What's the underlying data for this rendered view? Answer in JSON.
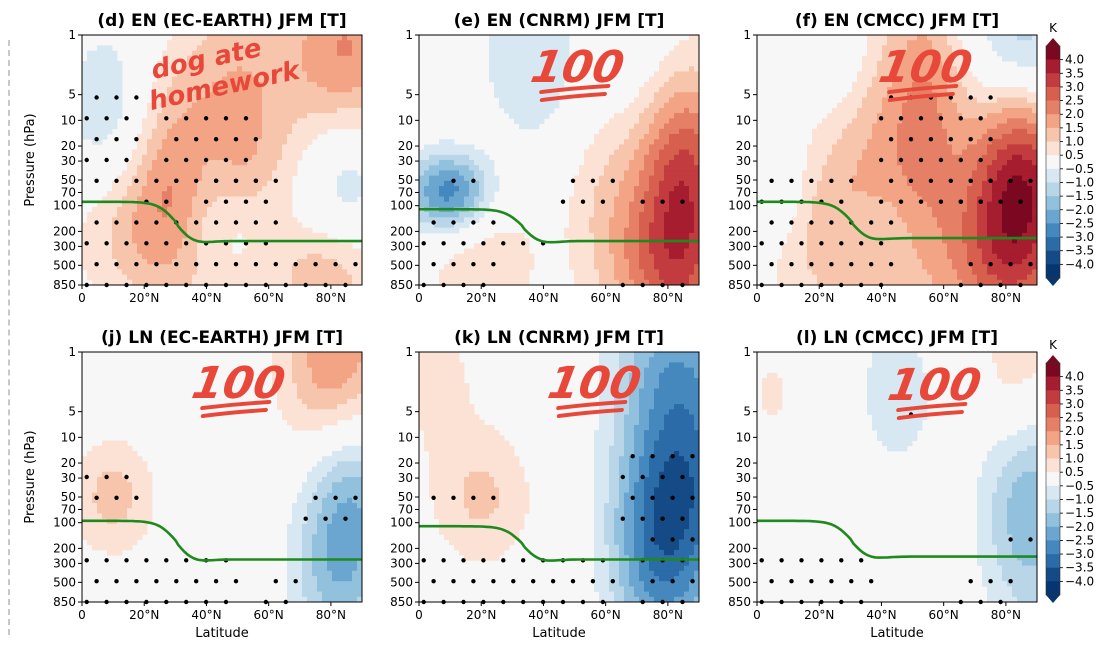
{
  "chart_data": {
    "type": "heatmap",
    "description_units": "K",
    "panels": [
      {
        "id": "d",
        "title": "(d) EN (EC-EARTH) JFM [T]",
        "row": 0,
        "col": 0
      },
      {
        "id": "e",
        "title": "(e) EN (CNRM) JFM [T]",
        "row": 0,
        "col": 1
      },
      {
        "id": "f",
        "title": "(f) EN (CMCC) JFM [T]",
        "row": 0,
        "col": 2
      },
      {
        "id": "j",
        "title": "(j) LN (EC-EARTH) JFM [T]",
        "row": 1,
        "col": 0
      },
      {
        "id": "k",
        "title": "(k) LN (CNRM) JFM [T]",
        "row": 1,
        "col": 1
      },
      {
        "id": "l",
        "title": "(l) LN (CMCC) JFM [T]",
        "row": 1,
        "col": 2
      }
    ],
    "xlabel": "Latitude",
    "ylabel": "Pressure (hPa)",
    "xticks": [
      "0",
      "20°N",
      "40°N",
      "60°N",
      "80°N"
    ],
    "xtick_values": [
      0,
      20,
      40,
      60,
      80
    ],
    "xlim": [
      0,
      90
    ],
    "yticks": [
      "1",
      "5",
      "10",
      "20",
      "30",
      "50",
      "70",
      "100",
      "200",
      "300",
      "500",
      "850"
    ],
    "ytick_values": [
      1,
      5,
      10,
      20,
      30,
      50,
      70,
      100,
      200,
      300,
      500,
      850
    ],
    "ylim": [
      1,
      850
    ],
    "yscale": "log",
    "colorbar": {
      "units": "K",
      "ticks": [
        "4.0",
        "3.5",
        "3.0",
        "2.5",
        "2.0",
        "1.5",
        "1.0",
        "0.5",
        "−0.5",
        "−1.0",
        "−1.5",
        "−2.0",
        "−2.5",
        "−3.0",
        "−3.5",
        "−4.0"
      ],
      "colors": [
        "#7a0820",
        "#a61d2f",
        "#c23b3e",
        "#d6604d",
        "#e58067",
        "#f2a484",
        "#f7c5ac",
        "#fbe2d4",
        "#f7f7f7",
        "#d8e8f2",
        "#b8d6e8",
        "#92c1dd",
        "#6aa6cf",
        "#4488bd",
        "#2a6ba8",
        "#144b87",
        "#063670"
      ]
    },
    "tropopause_line_color": "#1e8a1e"
  },
  "stickers": {
    "d": "dog ate homework",
    "hundred": "100"
  }
}
